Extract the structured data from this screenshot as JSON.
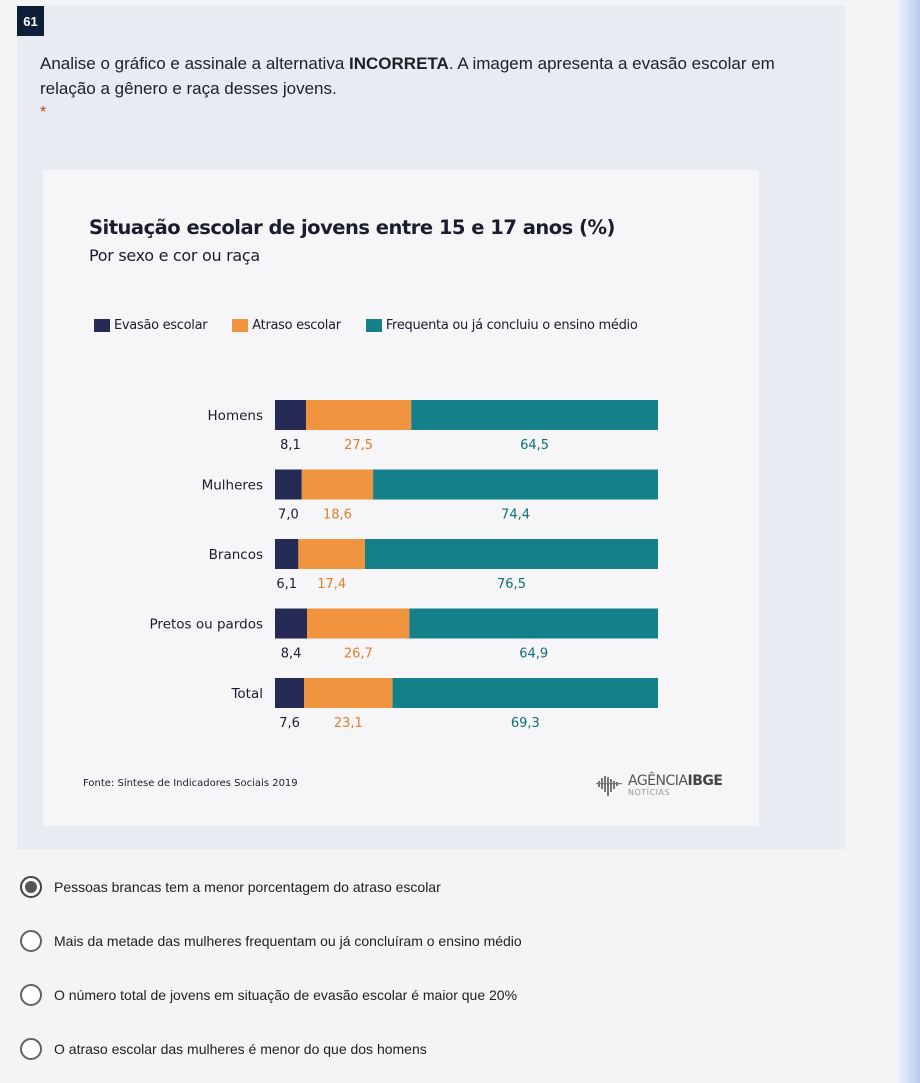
{
  "question": {
    "number": "61",
    "text_before": "Analise o gráfico e assinale a alternativa ",
    "text_bold": "INCORRETA",
    "text_after": ". A imagem apresenta a evasão escolar em relação a gênero e raça desses jovens.",
    "required_marker": "*"
  },
  "chart_data": {
    "type": "bar",
    "orientation": "horizontal",
    "stacked": true,
    "title": "Situação escolar de jovens entre 15 e 17 anos (%)",
    "subtitle": "Por sexo e cor ou raça",
    "categories": [
      "Homens",
      "Mulheres",
      "Brancos",
      "Pretos ou pardos",
      "Total"
    ],
    "series": [
      {
        "name": "Evasão escolar",
        "color": "#252b55",
        "values": [
          8.1,
          7.0,
          6.1,
          8.4,
          7.6
        ],
        "labels": [
          "8,1",
          "7,0",
          "6,1",
          "8,4",
          "7,6"
        ]
      },
      {
        "name": "Atraso escolar",
        "color": "#f0943f",
        "values": [
          27.5,
          18.6,
          17.4,
          26.7,
          23.1
        ],
        "labels": [
          "27,5",
          "18,6",
          "17,4",
          "26,7",
          "23,1"
        ]
      },
      {
        "name": "Frequenta ou já concluiu o ensino médio",
        "color": "#13808a",
        "values": [
          64.5,
          74.4,
          76.5,
          64.9,
          69.3
        ],
        "labels": [
          "64,5",
          "74,4",
          "76,5",
          "64,9",
          "69,3"
        ]
      }
    ],
    "legend_position": "top",
    "source": "Fonte: Síntese de Indicadores Sociais 2019"
  },
  "brand": {
    "name_light": "AGÊNCIA",
    "name_bold": "IBGE",
    "sub": "NOTÍCIAS"
  },
  "options": [
    {
      "label": "Pessoas brancas tem a menor porcentagem do atraso escolar",
      "selected": true
    },
    {
      "label": "Mais da metade das mulheres frequentam ou já concluíram o ensino médio",
      "selected": false
    },
    {
      "label": "O número total de jovens em situação de evasão escolar é maior que 20%",
      "selected": false
    },
    {
      "label": "O atraso escolar das mulheres é menor do que dos homens",
      "selected": false
    }
  ]
}
